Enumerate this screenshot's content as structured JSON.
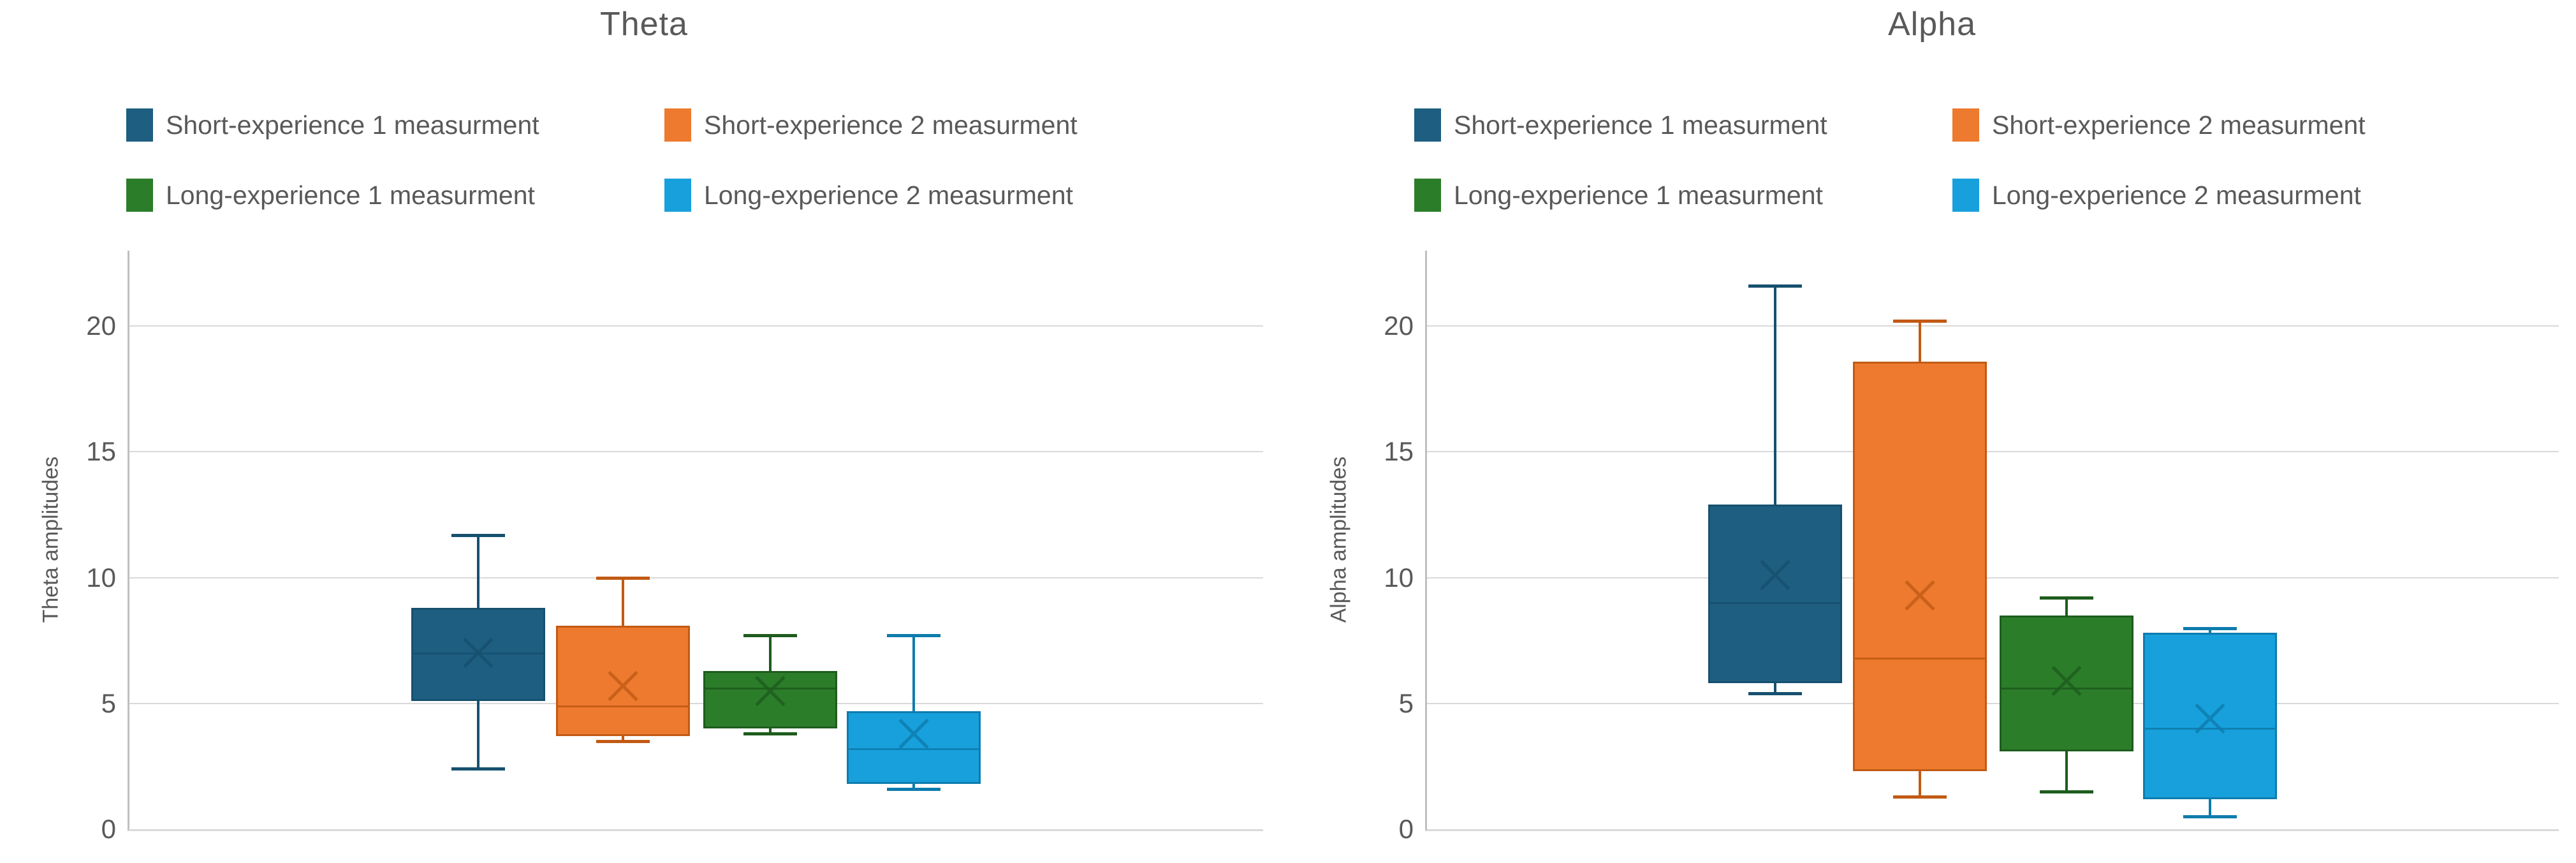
{
  "page": {
    "background": "#ffffff"
  },
  "style": {
    "text_color": "#595959",
    "grid_color": "#D9D9D9",
    "axis_color": "#BFBFBF"
  },
  "chart_data": [
    {
      "type": "box",
      "title": "Theta",
      "ylabel": "Theta amplitudes",
      "ylim": [
        0,
        23
      ],
      "yticks": [
        0,
        5,
        10,
        15,
        20
      ],
      "grid": true,
      "legend_position": "top",
      "series": [
        {
          "name": "Short-experience 1 measurment",
          "color": "#1E5E80",
          "line_color": "#16506F",
          "min": 2.4,
          "q1": 5.1,
          "median": 7.0,
          "q3": 8.8,
          "max": 11.7,
          "mean": 7.0
        },
        {
          "name": "Short-experience 2 measurment",
          "color": "#ED7A2E",
          "line_color": "#C25A14",
          "min": 3.5,
          "q1": 3.7,
          "median": 4.9,
          "q3": 8.1,
          "max": 10.0,
          "mean": 5.7
        },
        {
          "name": "Long-experience 1 measurment",
          "color": "#2B7D2A",
          "line_color": "#1E5C1E",
          "min": 3.8,
          "q1": 4.0,
          "median": 5.6,
          "q3": 6.3,
          "max": 7.7,
          "mean": 5.5
        },
        {
          "name": "Long-experience 2 measurment",
          "color": "#17A0DC",
          "line_color": "#0E7CAD",
          "min": 1.6,
          "q1": 1.8,
          "median": 3.2,
          "q3": 4.7,
          "max": 7.7,
          "mean": 3.8
        }
      ]
    },
    {
      "type": "box",
      "title": "Alpha",
      "ylabel": "Alpha amplitudes",
      "ylim": [
        0,
        23
      ],
      "yticks": [
        0,
        5,
        10,
        15,
        20
      ],
      "grid": true,
      "legend_position": "top",
      "series": [
        {
          "name": "Short-experience 1 measurment",
          "color": "#1E5E80",
          "line_color": "#16506F",
          "min": 5.4,
          "q1": 5.8,
          "median": 9.0,
          "q3": 12.9,
          "max": 21.6,
          "mean": 10.1
        },
        {
          "name": "Short-experience 2 measurment",
          "color": "#ED7A2E",
          "line_color": "#C25A14",
          "min": 1.3,
          "q1": 2.3,
          "median": 6.8,
          "q3": 18.6,
          "max": 20.2,
          "mean": 9.3
        },
        {
          "name": "Long-experience 1 measurment",
          "color": "#2B7D2A",
          "line_color": "#1E5C1E",
          "min": 1.5,
          "q1": 3.1,
          "median": 5.6,
          "q3": 8.5,
          "max": 9.2,
          "mean": 5.9
        },
        {
          "name": "Long-experience 2 measurment",
          "color": "#17A0DC",
          "line_color": "#0E7CAD",
          "min": 0.5,
          "q1": 1.2,
          "median": 4.0,
          "q3": 7.8,
          "max": 8.0,
          "mean": 4.4
        }
      ]
    }
  ]
}
